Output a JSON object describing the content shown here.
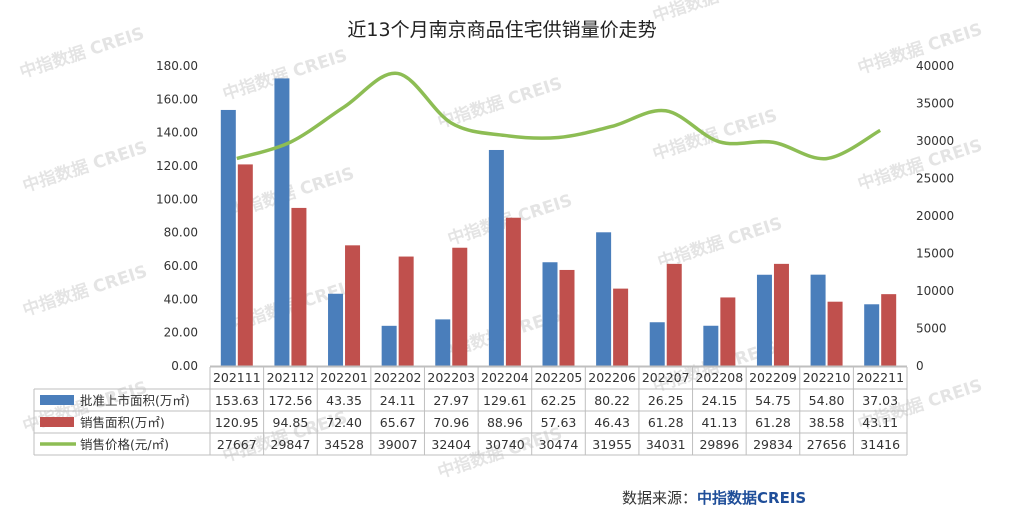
{
  "chart_data": {
    "type": "bar",
    "title": "近13个月南京商品住宅供销量价走势",
    "categories": [
      "202111",
      "202112",
      "202201",
      "202202",
      "202203",
      "202204",
      "202205",
      "202206",
      "202207",
      "202208",
      "202209",
      "202210",
      "202211"
    ],
    "y_left": {
      "ylim": [
        0,
        180
      ],
      "ticks": [
        "0.00",
        "20.00",
        "40.00",
        "60.00",
        "80.00",
        "100.00",
        "120.00",
        "140.00",
        "160.00",
        "180.00"
      ]
    },
    "y_right": {
      "ylim": [
        0,
        40000
      ],
      "ticks": [
        "0",
        "5000",
        "10000",
        "15000",
        "20000",
        "25000",
        "30000",
        "35000",
        "40000"
      ]
    },
    "series": [
      {
        "name": "批准上市面积(万㎡)",
        "kind": "bar",
        "axis": "left",
        "color": "#4a7ebb",
        "values": [
          153.63,
          172.56,
          43.35,
          24.11,
          27.97,
          129.61,
          62.25,
          80.22,
          26.25,
          24.15,
          54.75,
          54.8,
          37.03
        ],
        "labels": [
          "153.63",
          "172.56",
          "43.35",
          "24.11",
          "27.97",
          "129.61",
          "62.25",
          "80.22",
          "26.25",
          "24.15",
          "54.75",
          "54.80",
          "37.03"
        ]
      },
      {
        "name": "销售面积(万㎡)",
        "kind": "bar",
        "axis": "left",
        "color": "#c0504d",
        "values": [
          120.95,
          94.85,
          72.4,
          65.67,
          70.96,
          88.96,
          57.63,
          46.43,
          61.28,
          41.13,
          61.28,
          38.58,
          43.11
        ],
        "labels": [
          "120.95",
          "94.85",
          "72.40",
          "65.67",
          "70.96",
          "88.96",
          "57.63",
          "46.43",
          "61.28",
          "41.13",
          "61.28",
          "38.58",
          "43.11"
        ]
      },
      {
        "name": "销售价格(元/㎡)",
        "kind": "line",
        "axis": "right",
        "color": "#8dbd54",
        "values": [
          27667,
          29847,
          34528,
          39007,
          32404,
          30740,
          30474,
          31955,
          34031,
          29896,
          29834,
          27656,
          31416
        ],
        "labels": [
          "27667",
          "29847",
          "34528",
          "39007",
          "32404",
          "30740",
          "30474",
          "31955",
          "34031",
          "29896",
          "29834",
          "27656",
          "31416"
        ]
      }
    ],
    "data_table": true
  },
  "watermark": "中指数据 CREIS",
  "source": {
    "label": "数据来源：",
    "brand": "中指数据CREIS"
  }
}
